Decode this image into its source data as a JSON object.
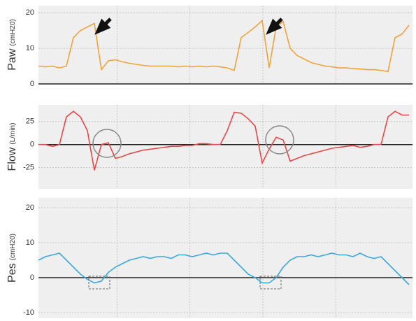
{
  "chart_data": [
    {
      "type": "line",
      "ylabel": "Paw",
      "ylabel_unit": "(cmH20)",
      "color": "#f0a33a",
      "values": [
        5,
        4.8,
        5,
        4.5,
        5,
        13,
        15,
        16,
        17,
        4,
        6.5,
        6.8,
        6.2,
        5.8,
        5.5,
        5.2,
        5,
        5,
        5,
        5,
        4.8,
        5,
        4.8,
        5,
        4.8,
        5,
        4.8,
        4.5,
        3.8,
        13,
        14.5,
        16,
        17.8,
        4.5,
        16,
        17.5,
        10,
        8,
        7,
        6,
        5.5,
        5,
        4.8,
        4.5,
        4.5,
        4.3,
        4.2,
        4,
        4,
        3.8,
        3.5,
        13,
        14,
        16.5
      ],
      "ylim": [
        0,
        22
      ],
      "yticks": [
        0,
        10,
        20
      ],
      "grid": true
    },
    {
      "type": "line",
      "ylabel": "Flow",
      "ylabel_unit": "(L/min)",
      "color": "#e84848",
      "values": [
        0,
        0,
        -2,
        0,
        30,
        36,
        30,
        15,
        -28,
        0,
        2,
        -15,
        -13,
        -10,
        -8,
        -6,
        -5,
        -4,
        -3,
        -2,
        -2,
        -1,
        -1,
        1,
        1,
        0,
        0,
        15,
        35,
        34,
        28,
        20,
        -20,
        -5,
        8,
        5,
        -18,
        -15,
        -12,
        -10,
        -8,
        -6,
        -4,
        -3,
        -2,
        -1,
        -3,
        -2,
        0,
        0,
        30,
        36,
        32,
        32
      ],
      "ylim": [
        -48,
        43
      ],
      "yticks": [
        -25,
        0,
        25
      ],
      "grid": true
    },
    {
      "type": "line",
      "ylabel": "Pes",
      "ylabel_unit": "(cmH20)",
      "color": "#3aa8e0",
      "values": [
        5,
        6,
        6.5,
        7,
        5,
        3,
        1,
        -0.5,
        -1.5,
        -1,
        1.5,
        3,
        4,
        5,
        5.5,
        6,
        5.5,
        6,
        6,
        5.5,
        6.5,
        6.5,
        6,
        6.5,
        7,
        6.5,
        7,
        7,
        5,
        3,
        1,
        0,
        -1.5,
        -1.5,
        0,
        3,
        5,
        6,
        6,
        6.5,
        6,
        6.5,
        7,
        6.5,
        6.5,
        6,
        7,
        6,
        5.5,
        6,
        4,
        2,
        0,
        -2
      ],
      "ylim": [
        -11.6,
        22.8
      ],
      "yticks": [
        -10,
        0,
        10,
        20
      ],
      "grid": true
    }
  ]
}
